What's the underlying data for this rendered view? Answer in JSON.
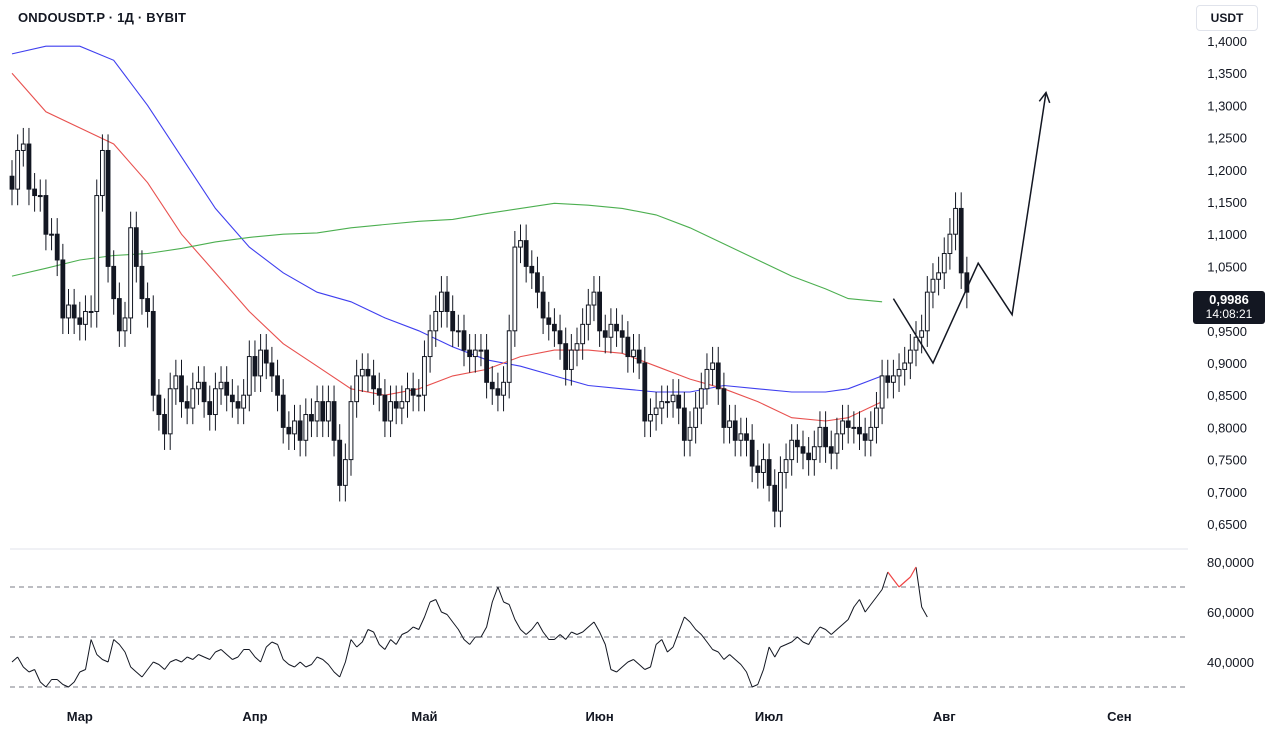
{
  "header": {
    "symbol_title": "ONDOUSDT.P · 1Д · BYBIT"
  },
  "currency_button": {
    "label": "USDT"
  },
  "last_price": {
    "value": "0,9986",
    "countdown": "14:08:21"
  },
  "colors": {
    "up": "#131722",
    "down": "#131722",
    "ma_slow": "#3f3fef",
    "ma_mid": "#e8514f",
    "ma_long": "#4caf50",
    "rsi_line": "#131722",
    "rsi_overbought": "#ef4444",
    "dashed": "#787b86",
    "price_tag_bg": "#131722"
  },
  "chart_data": [
    {
      "type": "candlestick",
      "symbol": "ONDOUSDT.P",
      "interval": "1Д",
      "exchange": "BYBIT",
      "ylim": [
        0.62,
        1.42
      ],
      "y_tick_labels": [
        "1,4000",
        "1,3500",
        "1,3000",
        "1,2500",
        "1,2000",
        "1,1500",
        "1,1000",
        "1,0500",
        "1,0000",
        "0,9500",
        "0,9000",
        "0,8500",
        "0,8000",
        "0,7500",
        "0,7000",
        "0,6500"
      ],
      "y_ticks": [
        1.4,
        1.35,
        1.3,
        1.25,
        1.2,
        1.15,
        1.1,
        1.05,
        1.0,
        0.95,
        0.9,
        0.85,
        0.8,
        0.75,
        0.7,
        0.65
      ],
      "x_tick_labels": [
        "Мар",
        "Апр",
        "Май",
        "Июн",
        "Июл",
        "Авг",
        "Сен"
      ],
      "x_tick_day_index": [
        12,
        43,
        73,
        104,
        134,
        165,
        196
      ],
      "candles_close": [
        1.17,
        1.23,
        1.24,
        1.17,
        1.16,
        1.16,
        1.1,
        1.1,
        1.06,
        0.97,
        0.99,
        0.97,
        0.96,
        0.98,
        0.98,
        1.16,
        1.23,
        1.05,
        1.0,
        0.95,
        0.97,
        1.11,
        1.05,
        1.0,
        0.98,
        0.85,
        0.82,
        0.79,
        0.86,
        0.88,
        0.84,
        0.83,
        0.86,
        0.87,
        0.84,
        0.82,
        0.86,
        0.87,
        0.85,
        0.84,
        0.83,
        0.85,
        0.91,
        0.88,
        0.92,
        0.9,
        0.88,
        0.85,
        0.8,
        0.79,
        0.81,
        0.78,
        0.82,
        0.81,
        0.84,
        0.81,
        0.84,
        0.78,
        0.71,
        0.75,
        0.84,
        0.88,
        0.89,
        0.88,
        0.86,
        0.85,
        0.81,
        0.84,
        0.83,
        0.84,
        0.86,
        0.85,
        0.85,
        0.91,
        0.95,
        0.98,
        1.01,
        0.98,
        0.95,
        0.95,
        0.92,
        0.91,
        0.92,
        0.92,
        0.87,
        0.86,
        0.85,
        0.87,
        0.95,
        1.08,
        1.09,
        1.05,
        1.04,
        1.01,
        0.97,
        0.96,
        0.95,
        0.93,
        0.89,
        0.92,
        0.93,
        0.96,
        0.99,
        1.01,
        0.95,
        0.94,
        0.96,
        0.95,
        0.94,
        0.91,
        0.92,
        0.9,
        0.81,
        0.82,
        0.83,
        0.84,
        0.84,
        0.85,
        0.83,
        0.78,
        0.8,
        0.83,
        0.86,
        0.89,
        0.9,
        0.86,
        0.8,
        0.81,
        0.78,
        0.79,
        0.78,
        0.74,
        0.73,
        0.75,
        0.71,
        0.67,
        0.73,
        0.75,
        0.78,
        0.77,
        0.76,
        0.75,
        0.77,
        0.8,
        0.77,
        0.76,
        0.79,
        0.81,
        0.8,
        0.8,
        0.79,
        0.78,
        0.8,
        0.83,
        0.88,
        0.87,
        0.88,
        0.89,
        0.9,
        0.92,
        0.94,
        0.95,
        1.01,
        1.03,
        1.04,
        1.07,
        1.1,
        1.14,
        1.04,
        1.01
      ],
      "series": [
        {
          "name": "",
          "color_key": "ma_slow",
          "points": [
            [
              0,
              1.38
            ],
            [
              6,
              1.392
            ],
            [
              12,
              1.392
            ],
            [
              18,
              1.37
            ],
            [
              24,
              1.3
            ],
            [
              30,
              1.22
            ],
            [
              36,
              1.14
            ],
            [
              42,
              1.08
            ],
            [
              48,
              1.04
            ],
            [
              54,
              1.01
            ],
            [
              60,
              0.995
            ],
            [
              66,
              0.97
            ],
            [
              72,
              0.95
            ],
            [
              78,
              0.925
            ],
            [
              84,
              0.905
            ],
            [
              90,
              0.895
            ],
            [
              96,
              0.88
            ],
            [
              102,
              0.865
            ],
            [
              108,
              0.86
            ],
            [
              114,
              0.855
            ],
            [
              120,
              0.855
            ],
            [
              126,
              0.865
            ],
            [
              132,
              0.86
            ],
            [
              138,
              0.855
            ],
            [
              144,
              0.855
            ],
            [
              148,
              0.86
            ],
            [
              154,
              0.88
            ]
          ]
        },
        {
          "name": "",
          "color_key": "ma_mid",
          "points": [
            [
              0,
              1.35
            ],
            [
              6,
              1.29
            ],
            [
              12,
              1.265
            ],
            [
              18,
              1.24
            ],
            [
              24,
              1.18
            ],
            [
              30,
              1.1
            ],
            [
              36,
              1.04
            ],
            [
              42,
              0.98
            ],
            [
              48,
              0.93
            ],
            [
              54,
              0.895
            ],
            [
              60,
              0.86
            ],
            [
              66,
              0.85
            ],
            [
              72,
              0.86
            ],
            [
              78,
              0.88
            ],
            [
              84,
              0.89
            ],
            [
              90,
              0.91
            ],
            [
              96,
              0.92
            ],
            [
              102,
              0.92
            ],
            [
              108,
              0.915
            ],
            [
              114,
              0.895
            ],
            [
              120,
              0.875
            ],
            [
              126,
              0.86
            ],
            [
              132,
              0.84
            ],
            [
              138,
              0.815
            ],
            [
              144,
              0.81
            ],
            [
              148,
              0.815
            ],
            [
              154,
              0.84
            ]
          ]
        },
        {
          "name": "",
          "color_key": "ma_long",
          "points": [
            [
              0,
              1.035
            ],
            [
              6,
              1.047
            ],
            [
              12,
              1.06
            ],
            [
              18,
              1.067
            ],
            [
              24,
              1.07
            ],
            [
              30,
              1.078
            ],
            [
              36,
              1.088
            ],
            [
              42,
              1.095
            ],
            [
              48,
              1.1
            ],
            [
              54,
              1.102
            ],
            [
              60,
              1.11
            ],
            [
              66,
              1.115
            ],
            [
              72,
              1.12
            ],
            [
              78,
              1.123
            ],
            [
              84,
              1.132
            ],
            [
              90,
              1.14
            ],
            [
              96,
              1.148
            ],
            [
              102,
              1.145
            ],
            [
              108,
              1.14
            ],
            [
              114,
              1.13
            ],
            [
              120,
              1.11
            ],
            [
              126,
              1.085
            ],
            [
              132,
              1.06
            ],
            [
              138,
              1.035
            ],
            [
              144,
              1.015
            ],
            [
              148,
              1.0
            ],
            [
              154,
              0.995
            ]
          ]
        }
      ],
      "projection_path": [
        [
          156,
          1.0
        ],
        [
          163,
          0.9
        ],
        [
          171,
          1.055
        ],
        [
          177,
          0.975
        ],
        [
          183,
          1.32
        ]
      ]
    },
    {
      "type": "line",
      "name": "",
      "ylim": [
        25,
        90
      ],
      "y_tick_labels": [
        "80,0000",
        "60,0000",
        "40,0000"
      ],
      "y_ticks": [
        80,
        60,
        40
      ],
      "levels": [
        70,
        50,
        30
      ],
      "values": [
        40,
        42,
        38,
        36,
        37,
        32,
        30,
        33,
        33,
        31,
        30,
        32,
        36,
        37,
        49,
        43,
        41,
        40,
        49,
        47,
        44,
        38,
        36,
        34,
        37,
        40,
        39,
        37,
        40,
        41,
        40,
        42,
        41,
        43,
        42,
        41,
        44,
        45,
        43,
        41,
        42,
        45,
        45,
        42,
        40,
        46,
        48,
        47,
        41,
        39,
        38,
        40,
        38,
        39,
        42,
        41,
        39,
        36,
        34,
        40,
        49,
        46,
        48,
        53,
        52,
        47,
        45,
        49,
        47,
        51,
        52,
        54,
        53,
        58,
        64,
        65,
        60,
        59,
        56,
        53,
        49,
        47,
        50,
        50,
        54,
        64,
        70,
        64,
        63,
        57,
        53,
        51,
        53,
        56,
        52,
        49,
        49,
        51,
        49,
        52,
        51,
        52,
        54,
        56,
        52,
        47,
        37,
        36,
        38,
        40,
        41,
        39,
        37,
        38,
        47,
        49,
        44,
        46,
        52,
        58,
        56,
        53,
        51,
        48,
        45,
        44,
        41,
        43,
        41,
        39,
        36,
        30,
        31,
        37,
        46,
        42,
        46,
        47,
        48,
        50,
        48,
        47,
        51,
        54,
        53,
        51,
        53,
        55,
        57,
        62,
        65,
        60,
        63,
        66,
        69,
        76,
        73,
        70,
        72,
        74,
        78,
        62,
        58
      ]
    }
  ]
}
